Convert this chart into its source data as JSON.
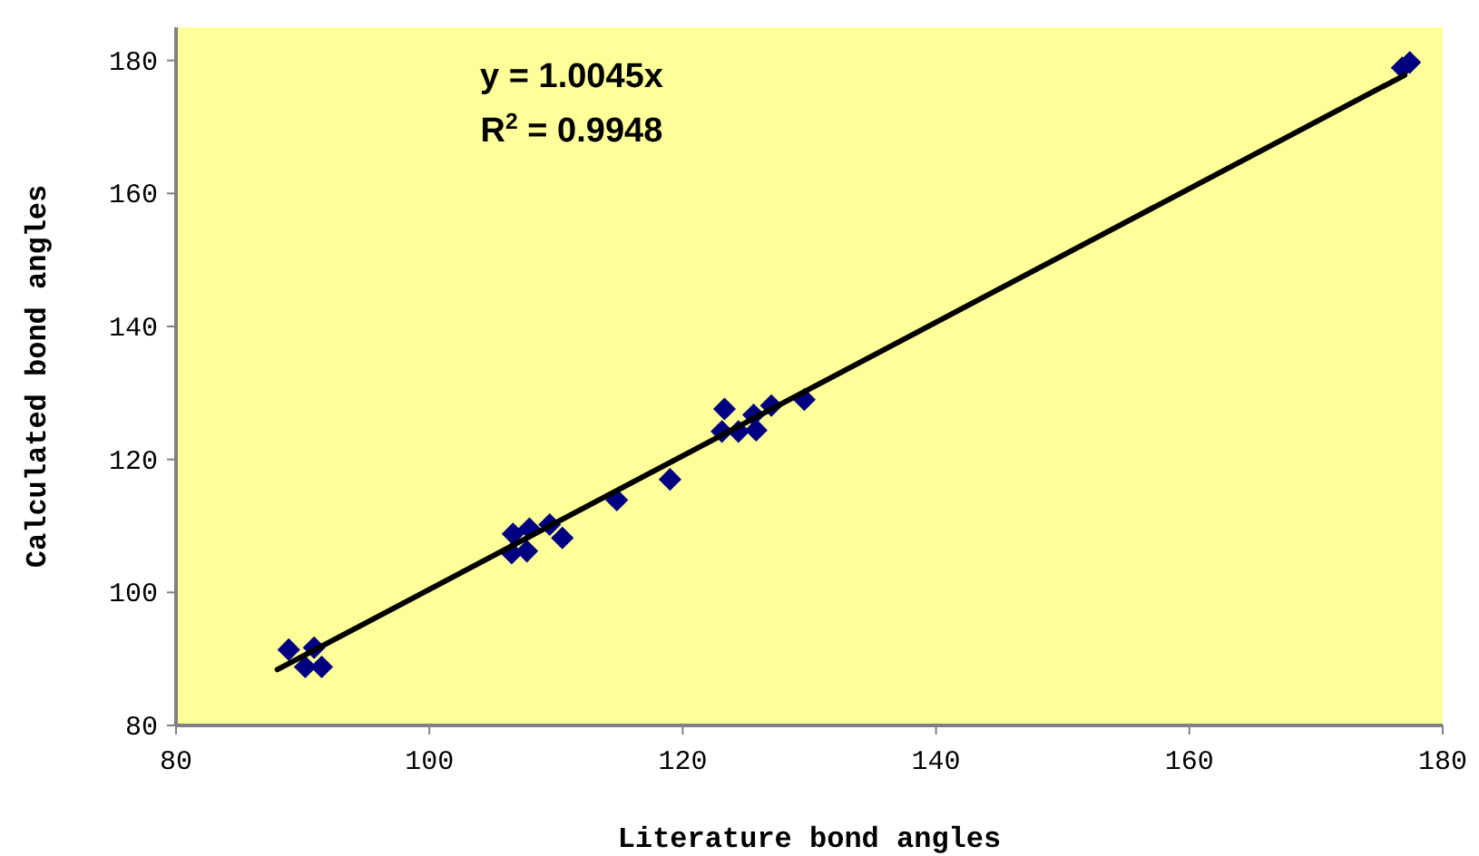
{
  "chart_data": {
    "type": "scatter",
    "xlabel": "Literature bond angles",
    "ylabel": "Calculated bond angles",
    "annotations": [
      "y = 1.0045x",
      "R$^{2}$ = 0.9948"
    ],
    "xlim": [
      80,
      180
    ],
    "ylim": [
      80,
      185
    ],
    "xticks": [
      80,
      100,
      120,
      140,
      160,
      180
    ],
    "yticks": [
      80,
      100,
      120,
      140,
      160,
      180
    ],
    "grid": false,
    "marker": "diamond",
    "series": [
      {
        "color": "#000080",
        "x": [
          88.9,
          90.9,
          91.5,
          90.2,
          106.6,
          107.9,
          109.5,
          110.5,
          106.5,
          107.7,
          114.8,
          119.0,
          123.3,
          123.1,
          124.4,
          125.6,
          125.8,
          127.0,
          129.6,
          176.8,
          177.4
        ],
        "values": [
          91.4,
          91.7,
          88.8,
          88.8,
          108.8,
          109.6,
          110.2,
          108.2,
          105.9,
          106.2,
          113.9,
          117.0,
          127.6,
          124.2,
          124.2,
          126.7,
          124.4,
          128.1,
          129.0,
          178.9,
          179.7
        ]
      },
      {
        "type": "line",
        "color": "#000000",
        "line_style": "solid",
        "marker": "none",
        "x": [
          88,
          177
        ],
        "values": [
          88.4,
          177.8
        ]
      }
    ]
  }
}
